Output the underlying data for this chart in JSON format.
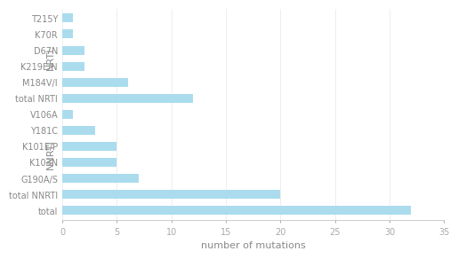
{
  "categories": [
    "T215Y",
    "K70R",
    "D67N",
    "K219E/N",
    "M184V/I",
    "total NRTI",
    "V106A",
    "Y181C",
    "K101E/P",
    "K103N",
    "G190A/S",
    "total NNRTI",
    "total"
  ],
  "values": [
    1,
    1,
    2,
    2,
    6,
    12,
    1,
    3,
    5,
    5,
    7,
    20,
    32
  ],
  "bar_color": "#aadcee",
  "xlabel": "number of mutations",
  "xlim": [
    0,
    35
  ],
  "xticks": [
    0,
    5,
    10,
    15,
    20,
    25,
    30,
    35
  ],
  "nrti_label": "NRTI",
  "nnrti_label": "NNRTI",
  "nrti_range": [
    0,
    5
  ],
  "nnrti_range": [
    6,
    11
  ],
  "background_color": "#ffffff",
  "bar_height": 0.55,
  "tick_fontsize": 7,
  "label_fontsize": 8,
  "group_label_fontsize": 8,
  "tick_color": "#aaaaaa",
  "spine_color": "#cccccc",
  "text_color": "#888888"
}
